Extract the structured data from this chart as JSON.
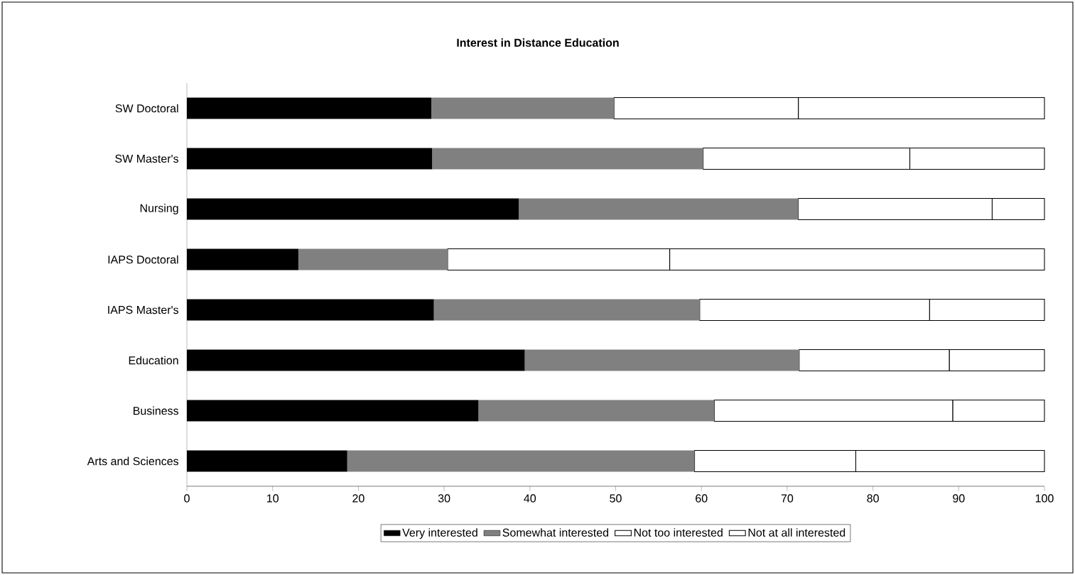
{
  "chart_data": {
    "type": "bar",
    "orientation": "horizontal",
    "stacked": true,
    "title": "Interest in Distance Education",
    "categories": [
      "SW Doctoral",
      "SW Master's",
      "Nursing",
      "IAPS Doctoral",
      "IAPS Master's",
      "Education",
      "Business",
      "Arts and Sciences"
    ],
    "series": [
      {
        "name": "Very interested",
        "color": "#000000",
        "values": [
          28.5,
          28.6,
          38.7,
          13.0,
          28.8,
          39.4,
          34.0,
          18.7
        ]
      },
      {
        "name": "Somewhat interested",
        "color": "#808080",
        "values": [
          21.3,
          31.6,
          32.6,
          17.4,
          31.0,
          32.0,
          27.5,
          40.5
        ]
      },
      {
        "name": "Not too interested",
        "color": "#ffffff",
        "values": [
          21.5,
          24.1,
          22.6,
          25.9,
          26.8,
          17.5,
          27.8,
          18.8
        ]
      },
      {
        "name": "Not at all interested",
        "color": "#ffffff",
        "values": [
          28.7,
          15.7,
          6.1,
          43.7,
          13.4,
          11.1,
          10.7,
          22.0
        ]
      }
    ],
    "xlim": [
      0,
      100
    ],
    "xticks": [
      0,
      10,
      20,
      30,
      40,
      50,
      60,
      70,
      80,
      90,
      100
    ],
    "legend": "bottom"
  }
}
